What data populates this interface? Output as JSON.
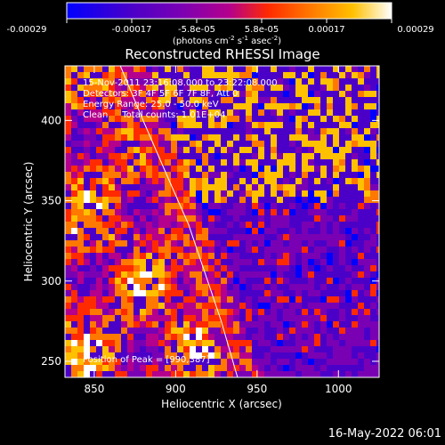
{
  "colorbar": {
    "ticks": [
      "-0.00029",
      "-0.00017",
      "-5.8e-05",
      "5.8e-05",
      "0.00017",
      "0.00029"
    ],
    "unit_main": "(photons cm",
    "unit_exp1": "-2",
    "unit_mid": " s",
    "unit_exp2": "-1",
    "unit_end": " asec",
    "unit_exp3": "-2",
    "unit_close": ")",
    "colors": [
      "#0000ff",
      "#4b00c8",
      "#7a00b4",
      "#b4008c",
      "#ff2a00",
      "#ff7800",
      "#ffc000",
      "#ffffff"
    ]
  },
  "chart_data": {
    "type": "heatmap",
    "title": "Reconstructed RHESSI Image",
    "xlabel": "Heliocentric X (arcsec)",
    "ylabel": "Heliocentric Y (arcsec)",
    "xlim": [
      832,
      1025
    ],
    "ylim": [
      240,
      434
    ],
    "x_ticks": [
      850,
      900,
      950,
      1000
    ],
    "y_ticks": [
      250,
      300,
      350,
      400
    ],
    "annotations": [
      "15-Nov-2011 23:16:08.000 to 23:22:08.000",
      "Detectors: 3F 4F 5F 6F 7F 8F, Att 0",
      "Energy Range: 25.0 - 50.0 keV",
      "Clean     Total counts: 1.01E+04",
      "Position of Peak = [990,387]"
    ],
    "peak": [
      990,
      387
    ],
    "limb_curve": [
      [
        866,
        434
      ],
      [
        880,
        400
      ],
      [
        895,
        365
      ],
      [
        908,
        335
      ],
      [
        918,
        305
      ],
      [
        928,
        275
      ],
      [
        938,
        240
      ]
    ]
  },
  "footer": {
    "date": "16-May-2022 06:01"
  }
}
